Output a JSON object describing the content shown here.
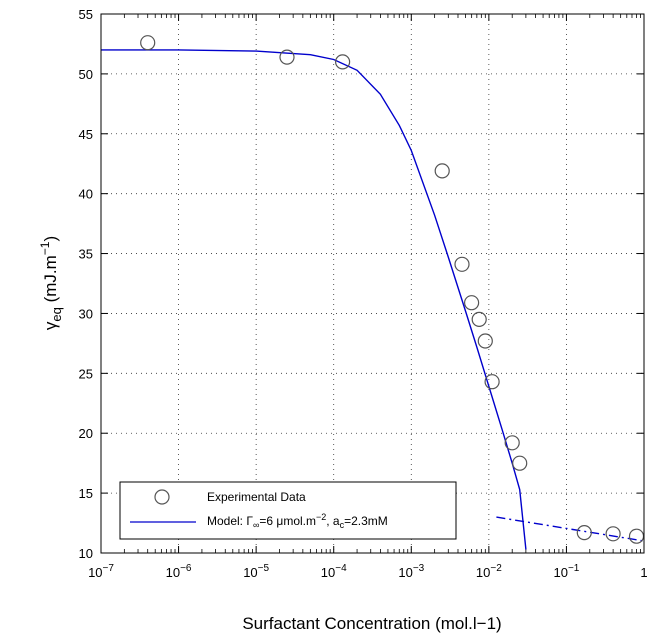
{
  "chart_data": {
    "type": "scatter",
    "xscale": "log",
    "xlim": [
      1e-07,
      1
    ],
    "ylim": [
      10,
      55
    ],
    "grid": true,
    "legend_position": "bottom-left",
    "x_ticks": [
      {
        "value": 1e-07,
        "base": "10",
        "exp": "−7"
      },
      {
        "value": 1e-06,
        "base": "10",
        "exp": "−6"
      },
      {
        "value": 1e-05,
        "base": "10",
        "exp": "−5"
      },
      {
        "value": 0.0001,
        "base": "10",
        "exp": "−4"
      },
      {
        "value": 0.001,
        "base": "10",
        "exp": "−3"
      },
      {
        "value": 0.01,
        "base": "10",
        "exp": "−2"
      },
      {
        "value": 0.1,
        "base": "10",
        "exp": "−1"
      },
      {
        "value": 1,
        "base": "1",
        "exp": ""
      }
    ],
    "y_ticks": [
      "10",
      "15",
      "20",
      "25",
      "30",
      "35",
      "40",
      "45",
      "50",
      "55"
    ],
    "xlabel": "Surfactant Concentration (mol.l−1)",
    "ylabel": {
      "symbol": "γ",
      "sub": "eq",
      "unit": " (mJ.m",
      "sup": "−1",
      "close": ")"
    },
    "series": [
      {
        "name": "Experimental Data",
        "kind": "points",
        "color": "#555555",
        "x": [
          4e-07,
          2.5e-05,
          0.00013,
          0.0025,
          0.0045,
          0.006,
          0.0075,
          0.009,
          0.011,
          0.02,
          0.025,
          0.17,
          0.4,
          0.8
        ],
        "y": [
          52.6,
          51.4,
          51.0,
          41.9,
          34.1,
          30.9,
          29.5,
          27.7,
          24.3,
          19.2,
          17.5,
          11.7,
          11.6,
          11.4
        ]
      },
      {
        "name": "Model",
        "label": {
          "pre": "Model: Γ",
          "sub1": "∞",
          "mid": "=6 μmol.m",
          "sup": "−2",
          "mid2": ", a",
          "sub2": "c",
          "post": "=2.3mM"
        },
        "kind": "line",
        "color": "#0000cc",
        "x": [
          1e-07,
          1e-06,
          1e-05,
          5e-05,
          0.0001,
          0.0002,
          0.0004,
          0.0007,
          0.001,
          0.002,
          0.003,
          0.005,
          0.007,
          0.01,
          0.015,
          0.02,
          0.025,
          0.03
        ],
        "y": [
          52.0,
          52.0,
          51.9,
          51.6,
          51.2,
          50.3,
          48.3,
          45.7,
          43.6,
          38.2,
          34.7,
          30.2,
          27.2,
          23.9,
          20.2,
          17.5,
          15.3,
          10.3
        ]
      },
      {
        "kind": "dashed-line",
        "color": "#0000cc",
        "x": [
          0.0125,
          1.0
        ],
        "y": [
          13.0,
          11.0
        ]
      }
    ]
  }
}
